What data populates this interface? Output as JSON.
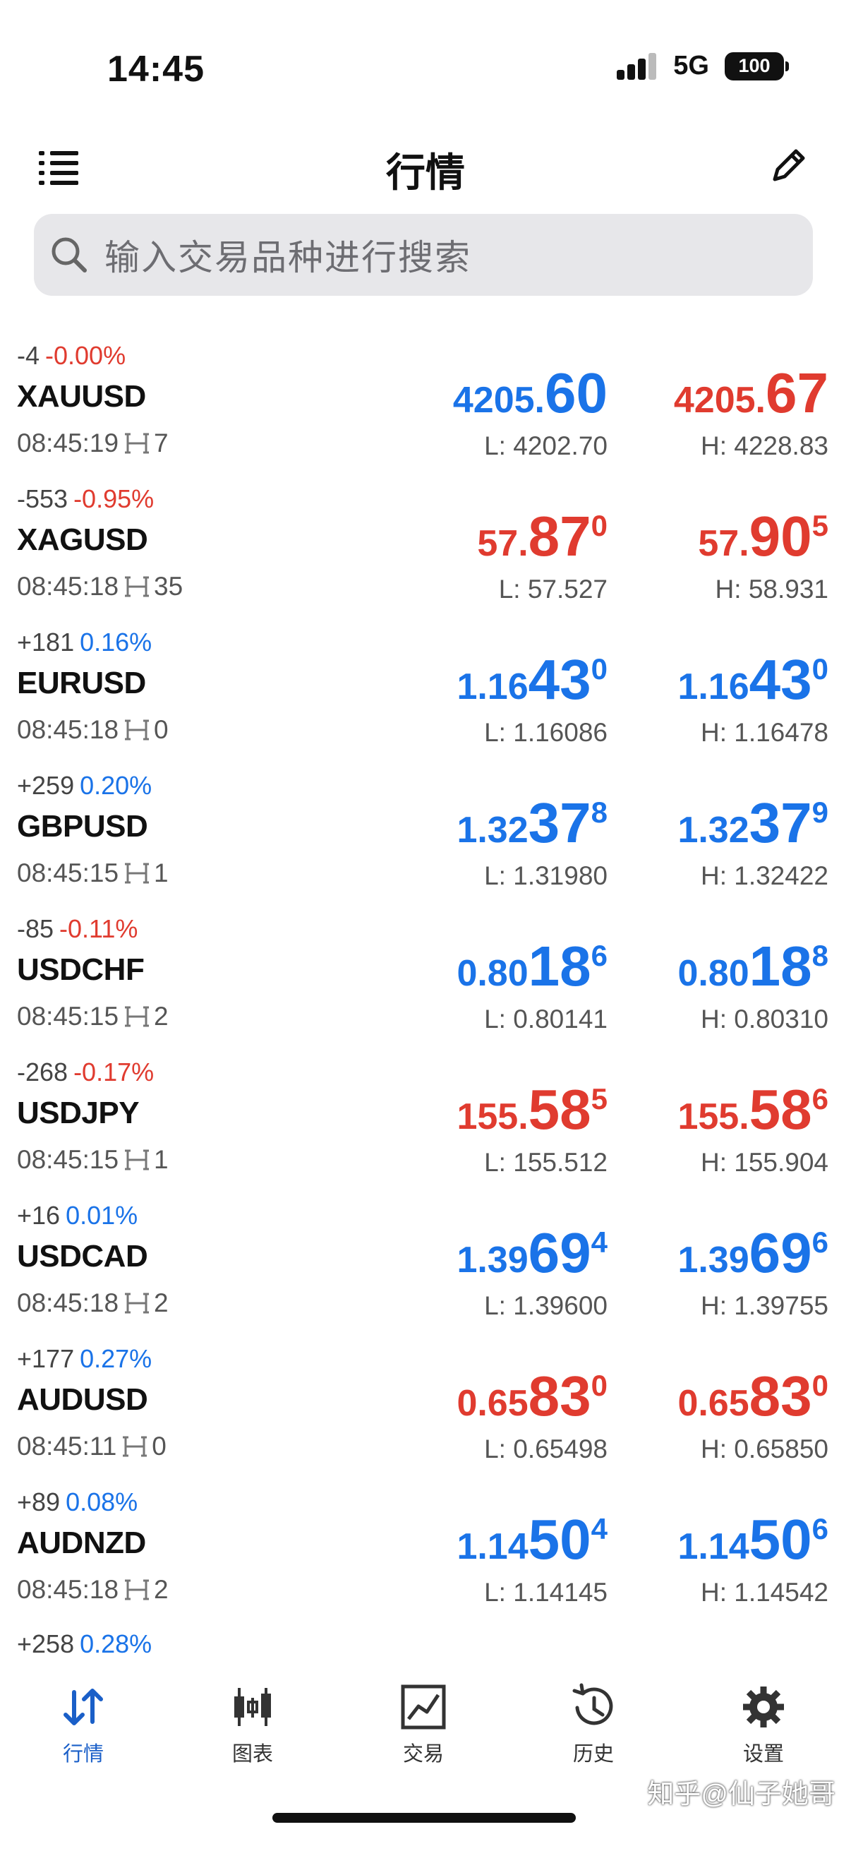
{
  "status_bar": {
    "time": "14:45",
    "network": "5G",
    "battery": "100"
  },
  "header": {
    "title": "行情"
  },
  "search": {
    "placeholder": "输入交易品种进行搜索"
  },
  "colors": {
    "up": "#1a73e8",
    "down": "#e03b2f",
    "active_tab": "#1a5fc8"
  },
  "quotes": [
    {
      "symbol": "XAUUSD",
      "change": "-4",
      "pct": "-0.00%",
      "time": "08:45:19",
      "spread": "7",
      "bid": {
        "small": "4205.",
        "big": "60",
        "sup": ""
      },
      "ask": {
        "small": "4205.",
        "big": "67",
        "sup": ""
      },
      "low": "L: 4202.70",
      "high": "H: 4228.83",
      "bid_color": "blue",
      "ask_color": "red",
      "pct_color": "red"
    },
    {
      "symbol": "XAGUSD",
      "change": "-553",
      "pct": "-0.95%",
      "time": "08:45:18",
      "spread": "35",
      "bid": {
        "small": "57.",
        "big": "87",
        "sup": "0"
      },
      "ask": {
        "small": "57.",
        "big": "90",
        "sup": "5"
      },
      "low": "L: 57.527",
      "high": "H: 58.931",
      "bid_color": "red",
      "ask_color": "red",
      "pct_color": "red"
    },
    {
      "symbol": "EURUSD",
      "change": "+181",
      "pct": "0.16%",
      "time": "08:45:18",
      "spread": "0",
      "bid": {
        "small": "1.16",
        "big": "43",
        "sup": "0"
      },
      "ask": {
        "small": "1.16",
        "big": "43",
        "sup": "0"
      },
      "low": "L: 1.16086",
      "high": "H: 1.16478",
      "bid_color": "blue",
      "ask_color": "blue",
      "pct_color": "blue"
    },
    {
      "symbol": "GBPUSD",
      "change": "+259",
      "pct": "0.20%",
      "time": "08:45:15",
      "spread": "1",
      "bid": {
        "small": "1.32",
        "big": "37",
        "sup": "8"
      },
      "ask": {
        "small": "1.32",
        "big": "37",
        "sup": "9"
      },
      "low": "L: 1.31980",
      "high": "H: 1.32422",
      "bid_color": "blue",
      "ask_color": "blue",
      "pct_color": "blue"
    },
    {
      "symbol": "USDCHF",
      "change": "-85",
      "pct": "-0.11%",
      "time": "08:45:15",
      "spread": "2",
      "bid": {
        "small": "0.80",
        "big": "18",
        "sup": "6"
      },
      "ask": {
        "small": "0.80",
        "big": "18",
        "sup": "8"
      },
      "low": "L: 0.80141",
      "high": "H: 0.80310",
      "bid_color": "blue",
      "ask_color": "blue",
      "pct_color": "red"
    },
    {
      "symbol": "USDJPY",
      "change": "-268",
      "pct": "-0.17%",
      "time": "08:45:15",
      "spread": "1",
      "bid": {
        "small": "155.",
        "big": "58",
        "sup": "5"
      },
      "ask": {
        "small": "155.",
        "big": "58",
        "sup": "6"
      },
      "low": "L: 155.512",
      "high": "H: 155.904",
      "bid_color": "red",
      "ask_color": "red",
      "pct_color": "red"
    },
    {
      "symbol": "USDCAD",
      "change": "+16",
      "pct": "0.01%",
      "time": "08:45:18",
      "spread": "2",
      "bid": {
        "small": "1.39",
        "big": "69",
        "sup": "4"
      },
      "ask": {
        "small": "1.39",
        "big": "69",
        "sup": "6"
      },
      "low": "L: 1.39600",
      "high": "H: 1.39755",
      "bid_color": "blue",
      "ask_color": "blue",
      "pct_color": "blue"
    },
    {
      "symbol": "AUDUSD",
      "change": "+177",
      "pct": "0.27%",
      "time": "08:45:11",
      "spread": "0",
      "bid": {
        "small": "0.65",
        "big": "83",
        "sup": "0"
      },
      "ask": {
        "small": "0.65",
        "big": "83",
        "sup": "0"
      },
      "low": "L: 0.65498",
      "high": "H: 0.65850",
      "bid_color": "red",
      "ask_color": "red",
      "pct_color": "blue"
    },
    {
      "symbol": "AUDNZD",
      "change": "+89",
      "pct": "0.08%",
      "time": "08:45:18",
      "spread": "2",
      "bid": {
        "small": "1.14",
        "big": "50",
        "sup": "4"
      },
      "ask": {
        "small": "1.14",
        "big": "50",
        "sup": "6"
      },
      "low": "L: 1.14145",
      "high": "H: 1.14542",
      "bid_color": "blue",
      "ask_color": "blue",
      "pct_color": "blue"
    },
    {
      "symbol": "",
      "change": "+258",
      "pct": "0.28%",
      "time": "",
      "spread": "",
      "bid": {
        "small": "",
        "big": "",
        "sup": ""
      },
      "ask": {
        "small": "",
        "big": "",
        "sup": ""
      },
      "low": "",
      "high": "",
      "bid_color": "red",
      "ask_color": "red",
      "pct_color": "blue"
    }
  ],
  "tabs": [
    {
      "label": "行情",
      "icon": "quotes-arrows-icon",
      "active": true
    },
    {
      "label": "图表",
      "icon": "candlestick-icon",
      "active": false
    },
    {
      "label": "交易",
      "icon": "trade-chart-icon",
      "active": false
    },
    {
      "label": "历史",
      "icon": "history-clock-icon",
      "active": false
    },
    {
      "label": "设置",
      "icon": "gear-icon",
      "active": false
    }
  ],
  "watermark": "知乎@仙子她哥"
}
